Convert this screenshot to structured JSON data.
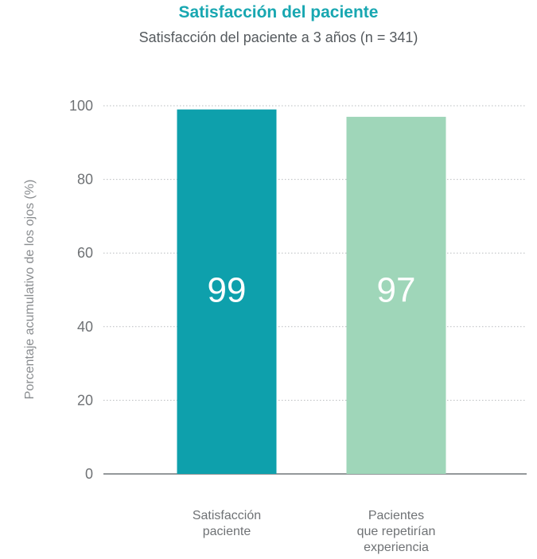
{
  "chart_data": {
    "type": "bar",
    "title": "Satisfacción del paciente",
    "subtitle": "Satisfacción del paciente a 3 años (n = 341)",
    "ylabel": "Porcentaje acumulativo de los ojos (%)",
    "xlabel": "",
    "ylim": [
      0,
      100
    ],
    "yticks": [
      0,
      20,
      40,
      60,
      80,
      100
    ],
    "grid": true,
    "categories": [
      [
        "Satisfacción",
        "paciente"
      ],
      [
        "Pacientes",
        "que repetirían",
        "experiencia"
      ]
    ],
    "values": [
      99,
      97
    ],
    "value_labels": [
      "99",
      "97"
    ],
    "colors": [
      "#0ea0ac",
      "#9fd6b9"
    ]
  }
}
